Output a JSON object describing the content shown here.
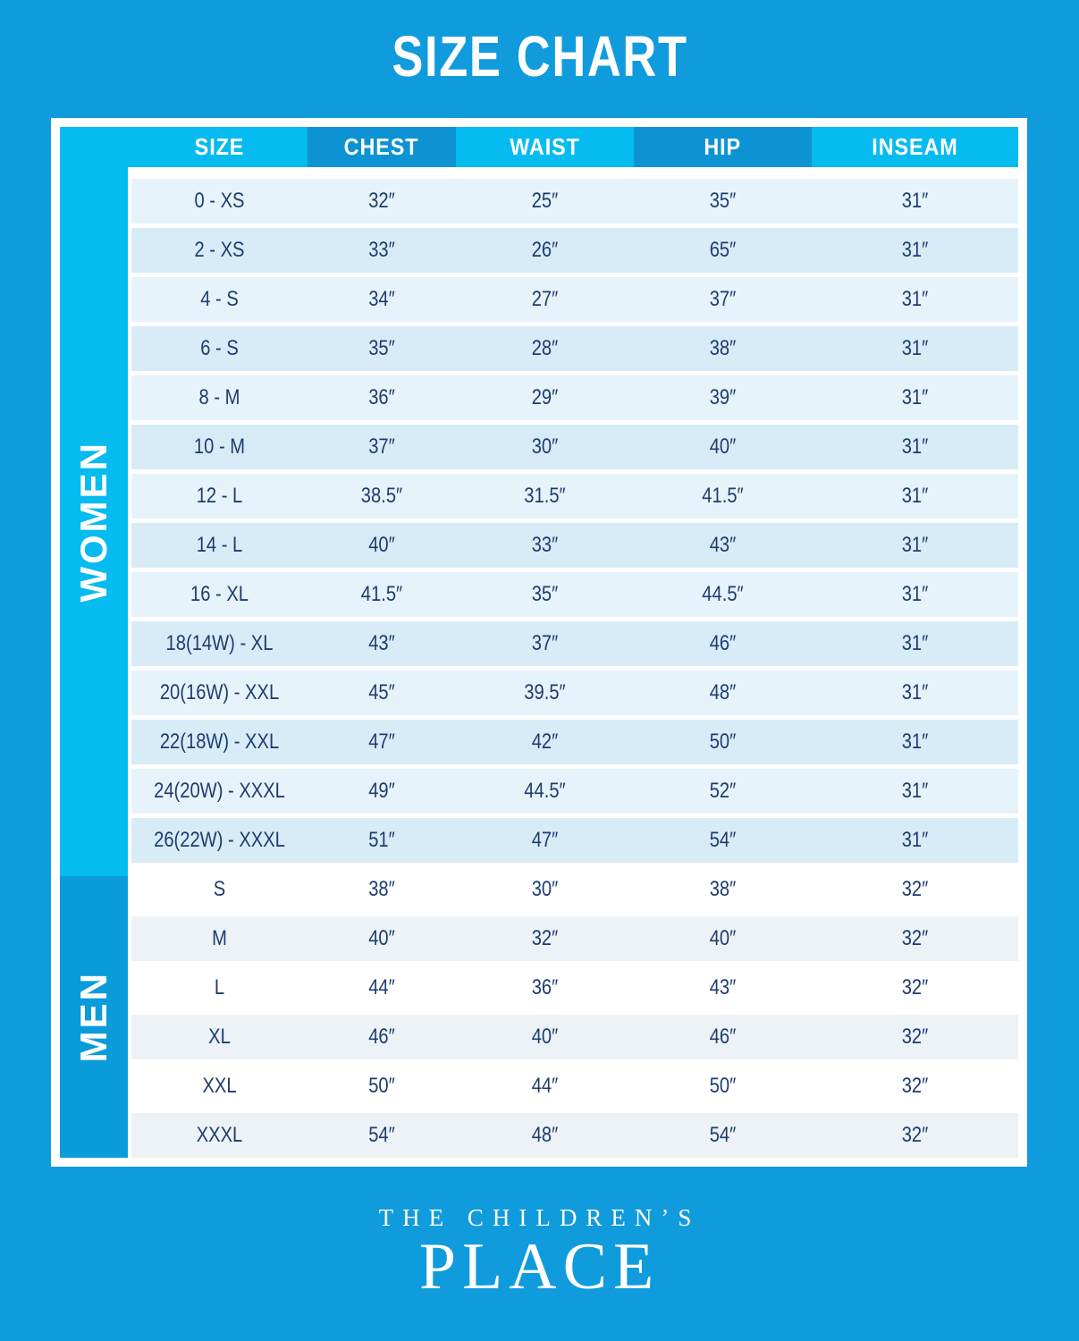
{
  "title": "SIZE CHART",
  "chart_data": {
    "type": "table",
    "title": "SIZE CHART",
    "units": "inches",
    "columns": [
      "SIZE",
      "CHEST",
      "WAIST",
      "HIP",
      "INSEAM"
    ],
    "sections": [
      {
        "name": "WOMEN",
        "rows": [
          [
            "0 - XS",
            "32″",
            "25″",
            "35″",
            "31″"
          ],
          [
            "2 - XS",
            "33″",
            "26″",
            "65″",
            "31″"
          ],
          [
            "4 - S",
            "34″",
            "27″",
            "37″",
            "31″"
          ],
          [
            "6 - S",
            "35″",
            "28″",
            "38″",
            "31″"
          ],
          [
            "8 - M",
            "36″",
            "29″",
            "39″",
            "31″"
          ],
          [
            "10 - M",
            "37″",
            "30″",
            "40″",
            "31″"
          ],
          [
            "12 - L",
            "38.5″",
            "31.5″",
            "41.5″",
            "31″"
          ],
          [
            "14 - L",
            "40″",
            "33″",
            "43″",
            "31″"
          ],
          [
            "16 - XL",
            "41.5″",
            "35″",
            "44.5″",
            "31″"
          ],
          [
            "18(14W) - XL",
            "43″",
            "37″",
            "46″",
            "31″"
          ],
          [
            "20(16W) - XXL",
            "45″",
            "39.5″",
            "48″",
            "31″"
          ],
          [
            "22(18W) - XXL",
            "47″",
            "42″",
            "50″",
            "31″"
          ],
          [
            "24(20W) - XXXL",
            "49″",
            "44.5″",
            "52″",
            "31″"
          ],
          [
            "26(22W) - XXXL",
            "51″",
            "47″",
            "54″",
            "31″"
          ]
        ]
      },
      {
        "name": "MEN",
        "rows": [
          [
            "S",
            "38″",
            "30″",
            "38″",
            "32″"
          ],
          [
            "M",
            "40″",
            "32″",
            "40″",
            "32″"
          ],
          [
            "L",
            "44″",
            "36″",
            "43″",
            "32″"
          ],
          [
            "XL",
            "46″",
            "40″",
            "46″",
            "32″"
          ],
          [
            "XXL",
            "50″",
            "44″",
            "50″",
            "32″"
          ],
          [
            "XXXL",
            "54″",
            "48″",
            "54″",
            "32″"
          ]
        ]
      }
    ]
  },
  "logo": {
    "line1": "THE CHILDREN’S",
    "line2": "PLACE"
  },
  "colors": {
    "background": "#109bdc",
    "frame": "#ffffff",
    "header_light": "#06bbef",
    "header_dark": "#0d93d3",
    "women_band": "#06bbef",
    "men_band": "#0a9cda",
    "women_row_light": "#e7f3fa",
    "women_row_dark": "#d8ecf7",
    "men_row_light": "#ffffff",
    "men_row_dark": "#ecf2f6",
    "cell_text": "#1e3c6e",
    "header_text": "#ffffff"
  }
}
